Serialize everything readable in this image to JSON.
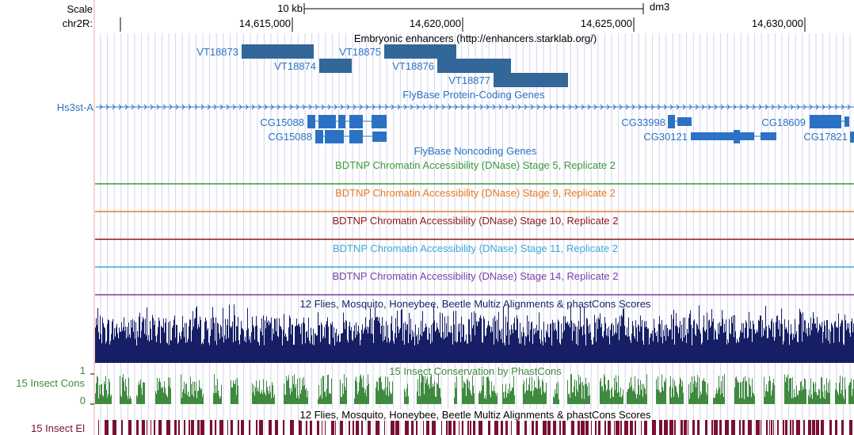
{
  "ruler": {
    "scale_label": "Scale",
    "chrom_label": "chr2R:",
    "scalebar_label": "10 kb",
    "assembly": "dm3",
    "positions": [
      "14,615,000",
      "14,620,000",
      "14,625,000",
      "14,630,000"
    ]
  },
  "enhancers": {
    "title": "Embryonic enhancers (http://enhancers.starklab.org/)",
    "items": [
      "VT18873",
      "VT18874",
      "VT18875",
      "VT18876",
      "VT18877"
    ]
  },
  "coding": {
    "title": "FlyBase Protein-Coding Genes",
    "genes": [
      "Hs3st-A",
      "CG15088",
      "CG15088",
      "CG33998",
      "CG30121",
      "CG18609",
      "CG17821"
    ]
  },
  "noncoding": {
    "title": "FlyBase Noncoding Genes"
  },
  "dnase": [
    {
      "title": "BDTNP Chromatin Accessibility (DNase) Stage 5, Replicate 2",
      "color": "#3a9a3a"
    },
    {
      "title": "BDTNP Chromatin Accessibility (DNase) Stage 9, Replicate 2",
      "color": "#e87a1e"
    },
    {
      "title": "BDTNP Chromatin Accessibility (DNase) Stage 10, Replicate 2",
      "color": "#8b1a1a"
    },
    {
      "title": "BDTNP Chromatin Accessibility (DNase) Stage 11, Replicate 2",
      "color": "#3ea8d6"
    },
    {
      "title": "BDTNP Chromatin Accessibility (DNase) Stage 14, Replicate 2",
      "color": "#7b3fa6"
    }
  ],
  "multiz": {
    "title": "12 Flies, Mosquito, Honeybee, Beetle Multiz Alignments & phastCons Scores",
    "color": "#161f66"
  },
  "phastcons": {
    "title": "15 Insect Conservation by PhastCons",
    "side_label": "15 Insect Cons",
    "ymax": "1",
    "ymin": "0",
    "color": "#3f8a3f"
  },
  "elements": {
    "title": "12 Flies, Mosquito, Honeybee, Beetle Multiz Alignments & phastCons Scores",
    "side_label": "15 Insect El",
    "color": "#7a1030"
  },
  "colors": {
    "gene": "#2b72c4",
    "enhancer": "#336699",
    "gridline": "#c8c8e8",
    "sidebar": "#f5a5a5"
  }
}
